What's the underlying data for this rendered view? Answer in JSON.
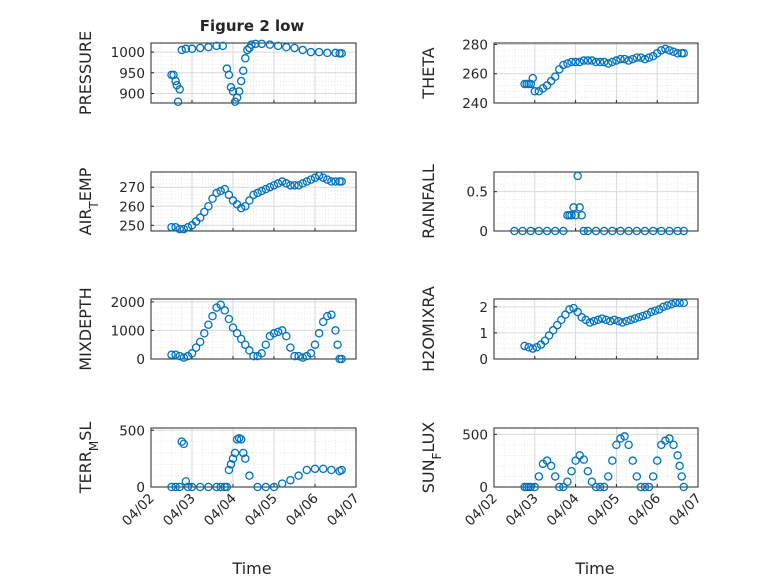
{
  "title": "Figure 2 low",
  "xlabel": "Time",
  "colors": {
    "series": "#0072BD",
    "axis": "#262626",
    "grid": "#d9d9d9"
  },
  "chart_data": [
    {
      "type": "scatter",
      "ylabel": "PRESSURE",
      "xticks": [
        "04/02",
        "04/03",
        "04/04",
        "04/05",
        "04/06",
        "04/07"
      ],
      "yticks": [
        900,
        950,
        1000
      ],
      "ylim": [
        877,
        1022
      ],
      "xlim": [
        0,
        5
      ],
      "grid": true,
      "x": [
        0.5,
        0.55,
        0.6,
        0.63,
        0.66,
        0.7,
        0.75,
        0.85,
        1,
        1.2,
        1.4,
        1.6,
        1.75,
        1.85,
        1.9,
        1.95,
        2.0,
        2.05,
        2.1,
        2.15,
        2.2,
        2.25,
        2.3,
        2.35,
        2.4,
        2.45,
        2.55,
        2.7,
        2.9,
        3.1,
        3.3,
        3.5,
        3.7,
        3.9,
        4.1,
        4.3,
        4.5,
        4.6,
        4.65
      ],
      "y": [
        945,
        945,
        930,
        920,
        880,
        910,
        1005,
        1008,
        1008,
        1010,
        1012,
        1015,
        1015,
        960,
        945,
        915,
        905,
        880,
        890,
        905,
        930,
        955,
        985,
        1005,
        1010,
        1018,
        1020,
        1020,
        1018,
        1015,
        1012,
        1010,
        1005,
        1000,
        1000,
        998,
        998,
        997,
        997
      ]
    },
    {
      "type": "scatter",
      "ylabel": "THETA",
      "xticks": [
        "04/02",
        "04/03",
        "04/04",
        "04/05",
        "04/06",
        "04/07"
      ],
      "yticks": [
        240,
        260,
        280
      ],
      "ylim": [
        240,
        281
      ],
      "xlim": [
        0,
        5
      ],
      "grid": true,
      "x": [
        0.75,
        0.8,
        0.85,
        0.9,
        0.95,
        1,
        1.1,
        1.2,
        1.3,
        1.4,
        1.5,
        1.6,
        1.7,
        1.8,
        1.9,
        2,
        2.1,
        2.2,
        2.3,
        2.4,
        2.5,
        2.6,
        2.7,
        2.8,
        2.9,
        3,
        3.1,
        3.2,
        3.3,
        3.4,
        3.5,
        3.6,
        3.7,
        3.8,
        3.9,
        4,
        4.1,
        4.2,
        4.3,
        4.4,
        4.5,
        4.6,
        4.65
      ],
      "y": [
        253,
        253,
        253,
        253,
        257,
        248,
        248,
        250,
        252,
        255,
        258,
        263,
        266,
        267,
        268,
        268,
        268,
        269,
        269,
        269,
        268,
        268,
        268,
        267,
        268,
        269,
        270,
        270,
        269,
        270,
        271,
        271,
        270,
        271,
        272,
        274,
        276,
        277,
        276,
        275,
        274,
        274,
        274
      ]
    },
    {
      "type": "scatter",
      "ylabel": "AIR_TEMP",
      "ylabel_main": "AIR",
      "ylabel_sub": "T",
      "ylabel_rest": "EMP",
      "xticks": [
        "04/02",
        "04/03",
        "04/04",
        "04/05",
        "04/06",
        "04/07"
      ],
      "yticks": [
        250,
        260,
        270
      ],
      "ylim": [
        247,
        278
      ],
      "xlim": [
        0,
        5
      ],
      "grid": true,
      "x": [
        0.5,
        0.6,
        0.7,
        0.8,
        0.9,
        1,
        1.1,
        1.2,
        1.3,
        1.4,
        1.5,
        1.6,
        1.7,
        1.8,
        1.9,
        2,
        2.1,
        2.2,
        2.3,
        2.4,
        2.5,
        2.6,
        2.7,
        2.8,
        2.9,
        3,
        3.1,
        3.2,
        3.3,
        3.4,
        3.5,
        3.6,
        3.7,
        3.8,
        3.9,
        4,
        4.1,
        4.2,
        4.3,
        4.4,
        4.5,
        4.6,
        4.65
      ],
      "y": [
        249,
        249,
        248,
        248,
        249,
        250,
        252,
        254,
        257,
        260,
        264,
        267,
        268,
        269,
        266,
        263,
        261,
        259,
        260,
        263,
        266,
        267,
        268,
        269,
        270,
        271,
        272,
        273,
        272,
        271,
        271,
        271,
        272,
        273,
        274,
        275,
        276,
        275,
        274,
        273,
        273,
        273,
        273
      ]
    },
    {
      "type": "scatter",
      "ylabel": "RAINFALL",
      "xticks": [
        "04/02",
        "04/03",
        "04/04",
        "04/05",
        "04/06",
        "04/07"
      ],
      "yticks": [
        0,
        0.5
      ],
      "ylim": [
        0,
        0.75
      ],
      "xlim": [
        0,
        5
      ],
      "grid": true,
      "x": [
        0.5,
        0.7,
        0.9,
        1.1,
        1.3,
        1.5,
        1.7,
        1.8,
        1.85,
        1.9,
        1.95,
        2.0,
        2.05,
        2.1,
        2.15,
        2.2,
        2.3,
        2.5,
        2.7,
        2.9,
        3.1,
        3.3,
        3.5,
        3.7,
        3.9,
        4.1,
        4.3,
        4.5,
        4.65
      ],
      "y": [
        0,
        0,
        0,
        0,
        0,
        0,
        0,
        0.2,
        0.2,
        0.2,
        0.3,
        0.2,
        0.7,
        0.3,
        0.2,
        0,
        0,
        0,
        0,
        0,
        0,
        0,
        0,
        0,
        0,
        0,
        0,
        0,
        0
      ]
    },
    {
      "type": "scatter",
      "ylabel": "MIXDEPTH",
      "xticks": [
        "04/02",
        "04/03",
        "04/04",
        "04/05",
        "04/06",
        "04/07"
      ],
      "yticks": [
        0,
        1000,
        2000
      ],
      "ylim": [
        0,
        2100
      ],
      "xlim": [
        0,
        5
      ],
      "grid": true,
      "x": [
        0.5,
        0.6,
        0.7,
        0.8,
        0.9,
        1,
        1.1,
        1.2,
        1.3,
        1.4,
        1.5,
        1.6,
        1.7,
        1.8,
        1.9,
        2,
        2.1,
        2.2,
        2.3,
        2.4,
        2.5,
        2.6,
        2.7,
        2.8,
        2.9,
        3,
        3.1,
        3.2,
        3.3,
        3.4,
        3.5,
        3.6,
        3.7,
        3.8,
        3.9,
        4,
        4.1,
        4.2,
        4.3,
        4.4,
        4.5,
        4.55,
        4.6,
        4.65
      ],
      "y": [
        150,
        150,
        100,
        50,
        100,
        200,
        400,
        600,
        900,
        1200,
        1500,
        1800,
        1900,
        1700,
        1400,
        1100,
        900,
        700,
        500,
        300,
        100,
        100,
        200,
        500,
        800,
        900,
        950,
        1000,
        800,
        400,
        100,
        100,
        50,
        100,
        200,
        500,
        900,
        1300,
        1500,
        1550,
        1000,
        500,
        0,
        0
      ]
    },
    {
      "type": "scatter",
      "ylabel": "H2OMIXRA",
      "xticks": [
        "04/02",
        "04/03",
        "04/04",
        "04/05",
        "04/06",
        "04/07"
      ],
      "yticks": [
        0,
        1,
        2
      ],
      "ylim": [
        0,
        2.3
      ],
      "xlim": [
        0,
        5
      ],
      "grid": true,
      "x": [
        0.75,
        0.85,
        0.95,
        1.05,
        1.15,
        1.25,
        1.35,
        1.45,
        1.55,
        1.65,
        1.75,
        1.85,
        1.95,
        2.05,
        2.15,
        2.25,
        2.35,
        2.45,
        2.55,
        2.65,
        2.75,
        2.85,
        2.95,
        3.05,
        3.15,
        3.25,
        3.35,
        3.45,
        3.55,
        3.65,
        3.75,
        3.85,
        3.95,
        4.05,
        4.15,
        4.25,
        4.35,
        4.45,
        4.55,
        4.65
      ],
      "y": [
        0.5,
        0.45,
        0.4,
        0.45,
        0.55,
        0.7,
        0.9,
        1.1,
        1.3,
        1.5,
        1.7,
        1.9,
        1.95,
        1.8,
        1.6,
        1.5,
        1.4,
        1.45,
        1.5,
        1.55,
        1.5,
        1.45,
        1.5,
        1.45,
        1.4,
        1.45,
        1.5,
        1.55,
        1.6,
        1.65,
        1.7,
        1.8,
        1.85,
        1.9,
        2.0,
        2.05,
        2.1,
        2.15,
        2.15,
        2.15
      ]
    },
    {
      "type": "scatter",
      "ylabel": "TERR_MSL",
      "ylabel_main": "TERR",
      "ylabel_sub": "M",
      "ylabel_rest": "SL",
      "xticks": [
        "04/02",
        "04/03",
        "04/04",
        "04/05",
        "04/06",
        "04/07"
      ],
      "yticks": [
        0,
        500
      ],
      "ylim": [
        0,
        520
      ],
      "xlim": [
        0,
        5
      ],
      "grid": true,
      "x": [
        0.5,
        0.6,
        0.7,
        0.75,
        0.8,
        0.85,
        0.9,
        1,
        1.2,
        1.4,
        1.6,
        1.7,
        1.8,
        1.85,
        1.9,
        1.95,
        2.0,
        2.05,
        2.1,
        2.15,
        2.2,
        2.25,
        2.3,
        2.4,
        2.6,
        2.8,
        3.0,
        3.2,
        3.4,
        3.6,
        3.8,
        4.0,
        4.2,
        4.4,
        4.6,
        4.65
      ],
      "y": [
        0,
        0,
        0,
        400,
        380,
        50,
        0,
        0,
        0,
        0,
        0,
        0,
        0,
        0,
        150,
        200,
        250,
        300,
        420,
        430,
        420,
        300,
        250,
        100,
        0,
        0,
        0,
        30,
        60,
        100,
        150,
        160,
        160,
        150,
        140,
        150
      ]
    },
    {
      "type": "scatter",
      "ylabel": "SUN_FLUX",
      "ylabel_main": "SUN",
      "ylabel_sub": "F",
      "ylabel_rest": "LUX",
      "xticks": [
        "04/02",
        "04/03",
        "04/04",
        "04/05",
        "04/06",
        "04/07"
      ],
      "yticks": [
        0,
        500
      ],
      "ylim": [
        0,
        560
      ],
      "xlim": [
        0,
        5
      ],
      "grid": true,
      "x": [
        0.75,
        0.8,
        0.85,
        0.9,
        1.0,
        1.1,
        1.2,
        1.3,
        1.4,
        1.5,
        1.6,
        1.7,
        1.8,
        1.9,
        2.0,
        2.1,
        2.2,
        2.3,
        2.4,
        2.5,
        2.6,
        2.7,
        2.8,
        2.9,
        3.0,
        3.1,
        3.2,
        3.3,
        3.4,
        3.5,
        3.6,
        3.7,
        3.8,
        3.9,
        4.0,
        4.1,
        4.2,
        4.3,
        4.4,
        4.5,
        4.55,
        4.6,
        4.65
      ],
      "y": [
        0,
        0,
        0,
        0,
        0,
        100,
        220,
        250,
        200,
        100,
        0,
        0,
        50,
        150,
        250,
        300,
        260,
        150,
        50,
        0,
        0,
        0,
        100,
        250,
        400,
        460,
        480,
        400,
        250,
        100,
        0,
        0,
        0,
        100,
        250,
        400,
        440,
        460,
        400,
        300,
        200,
        100,
        0
      ]
    }
  ]
}
